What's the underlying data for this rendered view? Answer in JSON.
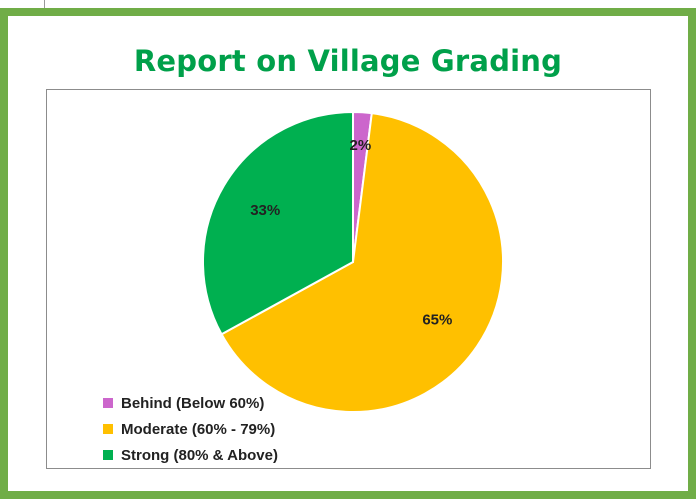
{
  "page": {
    "title": "Report on Village Grading"
  },
  "chart_data": {
    "type": "pie",
    "title": "Report on Village Grading",
    "categories": [
      "Behind (Below 60%)",
      "Moderate (60% - 79%)",
      "Strong (80% & Above)"
    ],
    "values": [
      2,
      65,
      33
    ],
    "labels": [
      "2%",
      "65%",
      "33%"
    ],
    "colors": [
      "#cc66cc",
      "#ffc000",
      "#00b050"
    ],
    "legend_position": "bottom-left",
    "start_angle_deg": 0,
    "direction": "clockwise"
  },
  "legend": {
    "items": [
      {
        "label": "Behind (Below 60%)",
        "color": "#cc66cc"
      },
      {
        "label": "Moderate (60% - 79%)",
        "color": "#ffc000"
      },
      {
        "label": "Strong (80% & Above)",
        "color": "#00b050"
      }
    ]
  }
}
